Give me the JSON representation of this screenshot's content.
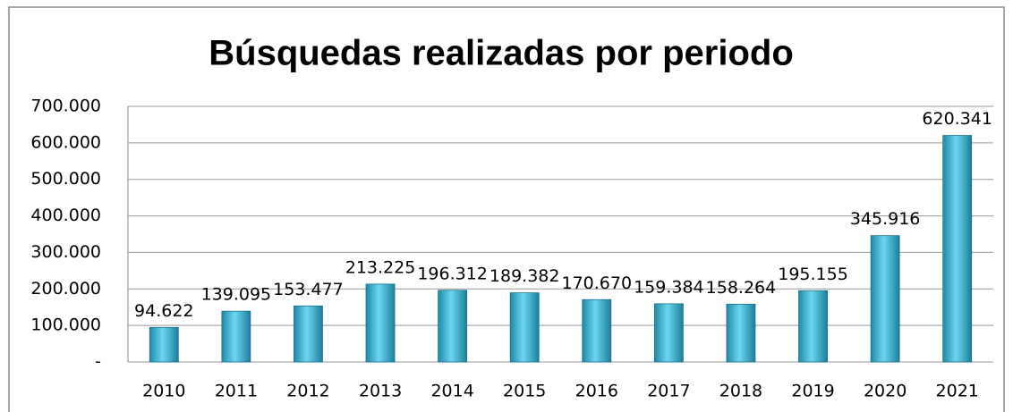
{
  "chart_data": {
    "type": "bar",
    "title": "Búsquedas realizadas por periodo",
    "categories": [
      "2010",
      "2011",
      "2012",
      "2013",
      "2014",
      "2015",
      "2016",
      "2017",
      "2018",
      "2019",
      "2020",
      "2021"
    ],
    "values": [
      94622,
      139095,
      153477,
      213225,
      196312,
      189382,
      170670,
      159384,
      158264,
      195155,
      345916,
      620341
    ],
    "value_labels": [
      "94.622",
      "139.095",
      "153.477",
      "213.225",
      "196.312",
      "189.382",
      "170.670",
      "159.384",
      "158.264",
      "195.155",
      "345.916",
      "620.341"
    ],
    "color": "#31b0d0",
    "ylim": [
      0,
      700000
    ],
    "yticks": [
      {
        "value": 0,
        "label": "-"
      },
      {
        "value": 100000,
        "label": "100.000"
      },
      {
        "value": 200000,
        "label": "200.000"
      },
      {
        "value": 300000,
        "label": "300.000"
      },
      {
        "value": 400000,
        "label": "400.000"
      },
      {
        "value": 500000,
        "label": "500.000"
      },
      {
        "value": 600000,
        "label": "600.000"
      },
      {
        "value": 700000,
        "label": "700.000"
      }
    ],
    "grid": true
  }
}
